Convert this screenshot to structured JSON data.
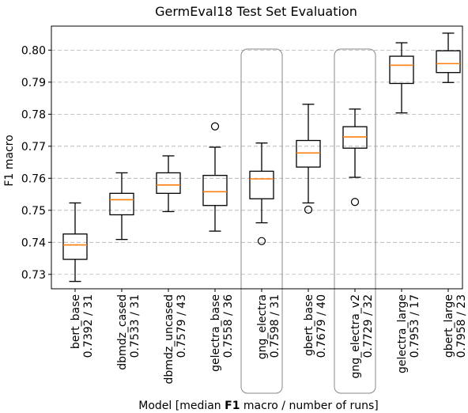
{
  "chart_data": {
    "type": "box",
    "title": "GermEval18 Test Set Evaluation",
    "xlabel_parts": [
      "Model [median ",
      "F1",
      " macro / number of runs]"
    ],
    "ylabel": "F1 macro",
    "ylim": [
      0.7255,
      0.8075
    ],
    "yticks": [
      0.73,
      0.74,
      0.75,
      0.76,
      0.77,
      0.78,
      0.79,
      0.8
    ],
    "ytick_labels": [
      "0.73",
      "0.74",
      "0.75",
      "0.76",
      "0.77",
      "0.78",
      "0.79",
      "0.80"
    ],
    "grid": "y-dashed",
    "colors": {
      "median": "#ff7f0e",
      "box": "#000000",
      "grid": "#b0b0b0",
      "highlight": "#888888"
    },
    "highlighted": [
      "gng_electra",
      "gng_electra_v2"
    ],
    "models": [
      {
        "name": "bert_base",
        "summary": "0.7392 / 31",
        "whislo": 0.7278,
        "q1": 0.7347,
        "med": 0.7392,
        "q3": 0.7426,
        "whishi": 0.7523,
        "fliers": []
      },
      {
        "name": "dbmdz_cased",
        "summary": "0.7533 / 31",
        "whislo": 0.7409,
        "q1": 0.7486,
        "med": 0.7533,
        "q3": 0.7553,
        "whishi": 0.7617,
        "fliers": []
      },
      {
        "name": "dbmdz_uncased",
        "summary": "0.7579 / 43",
        "whislo": 0.7496,
        "q1": 0.7553,
        "med": 0.7579,
        "q3": 0.7617,
        "whishi": 0.767,
        "fliers": []
      },
      {
        "name": "gelectra_base",
        "summary": "0.7558 / 36",
        "whislo": 0.7435,
        "q1": 0.7515,
        "med": 0.7558,
        "q3": 0.7609,
        "whishi": 0.7697,
        "fliers": [
          0.7762
        ]
      },
      {
        "name": "gng_electra",
        "summary": "0.7598 / 31",
        "whislo": 0.7461,
        "q1": 0.7536,
        "med": 0.7598,
        "q3": 0.7622,
        "whishi": 0.771,
        "fliers": [
          0.7404
        ]
      },
      {
        "name": "gbert_base",
        "summary": "0.7679 / 40",
        "whislo": 0.7523,
        "q1": 0.7635,
        "med": 0.7679,
        "q3": 0.7718,
        "whishi": 0.7831,
        "fliers": [
          0.7502
        ]
      },
      {
        "name": "gng_electra_v2",
        "summary": "0.7729 / 32",
        "whislo": 0.7603,
        "q1": 0.7694,
        "med": 0.7729,
        "q3": 0.7761,
        "whishi": 0.7816,
        "fliers": [
          0.7526
        ]
      },
      {
        "name": "gelectra_large",
        "summary": "0.7953 / 17",
        "whislo": 0.7804,
        "q1": 0.7896,
        "med": 0.7953,
        "q3": 0.7981,
        "whishi": 0.8023,
        "fliers": []
      },
      {
        "name": "gbert_large",
        "summary": "0.7958 / 23",
        "whislo": 0.7899,
        "q1": 0.793,
        "med": 0.7958,
        "q3": 0.7998,
        "whishi": 0.8053,
        "fliers": []
      }
    ]
  }
}
